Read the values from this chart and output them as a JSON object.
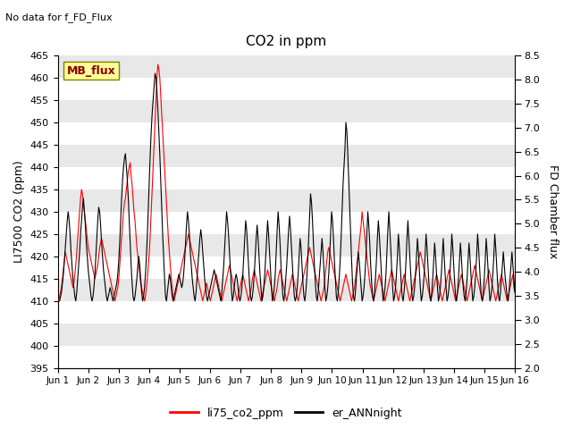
{
  "title": "CO2 in ppm",
  "top_left_text": "No data for f_FD_Flux",
  "ylabel_left": "LI7500 CO2 (ppm)",
  "ylabel_right": "FD Chamber flux",
  "ylim_left": [
    395,
    465
  ],
  "ylim_right": [
    2.0,
    8.5
  ],
  "yticks_left": [
    395,
    400,
    405,
    410,
    415,
    420,
    425,
    430,
    435,
    440,
    445,
    450,
    455,
    460,
    465
  ],
  "yticks_right": [
    2.0,
    2.5,
    3.0,
    3.5,
    4.0,
    4.5,
    5.0,
    5.5,
    6.0,
    6.5,
    7.0,
    7.5,
    8.0,
    8.5
  ],
  "xtick_labels": [
    "Jun 1",
    "Jun 2",
    "Jun 3",
    "Jun 4",
    "Jun 5",
    "Jun 6",
    "Jun 7",
    "Jun 8",
    "Jun 9",
    "Jun 10",
    "Jun 11",
    "Jun 12",
    "Jun 13",
    "Jun 14",
    "Jun 15",
    "Jun 16"
  ],
  "legend_label_left": "li75_co2_ppm",
  "legend_label_right": "er_ANNnight",
  "legend_box_text": "MB_flux",
  "color_red": "#FF0000",
  "color_black": "#000000",
  "color_legend_box": "#FFFF99",
  "background_color": "#FFFFFF",
  "strip_color": "#E8E8E8",
  "red_data": [
    410,
    410,
    411,
    412,
    413,
    415,
    417,
    419,
    421,
    420,
    419,
    418,
    417,
    416,
    415,
    414,
    413,
    414,
    416,
    418,
    421,
    424,
    427,
    430,
    433,
    435,
    434,
    432,
    430,
    428,
    426,
    424,
    422,
    421,
    420,
    419,
    418,
    417,
    416,
    415,
    416,
    417,
    418,
    420,
    422,
    423,
    424,
    423,
    422,
    421,
    420,
    419,
    418,
    417,
    416,
    415,
    414,
    413,
    412,
    411,
    410,
    411,
    412,
    413,
    415,
    418,
    421,
    424,
    427,
    430,
    432,
    433,
    435,
    437,
    439,
    440,
    441,
    438,
    436,
    433,
    430,
    428,
    425,
    422,
    420,
    418,
    416,
    414,
    413,
    412,
    411,
    410,
    411,
    413,
    415,
    418,
    421,
    425,
    430,
    435,
    440,
    445,
    450,
    455,
    460,
    463,
    462,
    460,
    456,
    452,
    448,
    444,
    440,
    436,
    432,
    428,
    424,
    421,
    418,
    415,
    413,
    411,
    410,
    411,
    412,
    413,
    414,
    415,
    416,
    417,
    418,
    419,
    420,
    421,
    422,
    423,
    424,
    425,
    424,
    423,
    422,
    421,
    420,
    419,
    418,
    417,
    416,
    415,
    414,
    413,
    412,
    411,
    410,
    411,
    412,
    413,
    414,
    413,
    412,
    411,
    410,
    411,
    412,
    413,
    414,
    415,
    416,
    415,
    414,
    413,
    412,
    411,
    410,
    411,
    412,
    413,
    414,
    415,
    416,
    417,
    418,
    417,
    416,
    415,
    414,
    413,
    412,
    411,
    410,
    411,
    412,
    413,
    414,
    415,
    416,
    415,
    414,
    413,
    412,
    411,
    410,
    411,
    412,
    413,
    415,
    416,
    417,
    416,
    415,
    414,
    413,
    412,
    411,
    410,
    411,
    412,
    413,
    414,
    415,
    416,
    417,
    416,
    415,
    414,
    413,
    412,
    411,
    410,
    411,
    412,
    413,
    415,
    416,
    417,
    416,
    415,
    414,
    413,
    412,
    411,
    410,
    411,
    412,
    413,
    414,
    415,
    416,
    415,
    414,
    413,
    412,
    411,
    410,
    411,
    412,
    413,
    414,
    415,
    416,
    417,
    418,
    419,
    420,
    421,
    422,
    421,
    420,
    419,
    418,
    417,
    416,
    415,
    414,
    413,
    412,
    411,
    410,
    411,
    412,
    413,
    415,
    417,
    419,
    421,
    422,
    421,
    420,
    419,
    418,
    417,
    416,
    415,
    414,
    413,
    412,
    411,
    410,
    411,
    412,
    413,
    414,
    415,
    416,
    415,
    414,
    413,
    412,
    411,
    410,
    411,
    412,
    413,
    415,
    417,
    419,
    421,
    423,
    425,
    427,
    430,
    428,
    426,
    424,
    422,
    420,
    418,
    416,
    414,
    413,
    412,
    411,
    410,
    411,
    412,
    413,
    414,
    415,
    416,
    415,
    414,
    413,
    412,
    411,
    410,
    411,
    412,
    413,
    414,
    415,
    416,
    417,
    416,
    415,
    414,
    413,
    412,
    411,
    410,
    411,
    412,
    413,
    414,
    415,
    416,
    415,
    414,
    413,
    412,
    411,
    410,
    411,
    412,
    413,
    414,
    415,
    416,
    417,
    418,
    419,
    420,
    421,
    420,
    419,
    418,
    417,
    416,
    415,
    414,
    413,
    412,
    411,
    410,
    411,
    412,
    413,
    414,
    415,
    416,
    415,
    414,
    413,
    412,
    411,
    410,
    411,
    412,
    413,
    414,
    415,
    416,
    417,
    416,
    415,
    414,
    413,
    412,
    411,
    410,
    411,
    412,
    413,
    414,
    415,
    416,
    415,
    414,
    413,
    412,
    411,
    410,
    411,
    412,
    413,
    414,
    415,
    416,
    417,
    418,
    417,
    416,
    415,
    414,
    413,
    412,
    411,
    410,
    411,
    412,
    413,
    414,
    415,
    416,
    417,
    416,
    415,
    414,
    413,
    412,
    411,
    410,
    411,
    412,
    413,
    414,
    415,
    416,
    415,
    414,
    413,
    412,
    411,
    410,
    411,
    412,
    413,
    414,
    415,
    416,
    413,
    412
  ],
  "black_data": [
    410,
    410,
    410,
    411,
    412,
    414,
    416,
    419,
    422,
    425,
    428,
    430,
    428,
    425,
    421,
    418,
    415,
    413,
    411,
    410,
    412,
    415,
    418,
    421,
    425,
    428,
    431,
    433,
    430,
    427,
    423,
    420,
    417,
    415,
    413,
    411,
    410,
    411,
    413,
    416,
    420,
    424,
    428,
    431,
    430,
    427,
    423,
    420,
    417,
    415,
    413,
    411,
    410,
    411,
    412,
    413,
    412,
    411,
    410,
    411,
    412,
    413,
    414,
    416,
    419,
    423,
    428,
    433,
    437,
    440,
    442,
    443,
    440,
    437,
    433,
    428,
    423,
    418,
    414,
    411,
    410,
    411,
    413,
    415,
    418,
    420,
    418,
    415,
    412,
    410,
    411,
    413,
    416,
    420,
    425,
    431,
    437,
    443,
    448,
    452,
    455,
    458,
    461,
    460,
    457,
    453,
    448,
    443,
    437,
    431,
    425,
    420,
    415,
    411,
    410,
    412,
    414,
    416,
    415,
    413,
    411,
    410,
    411,
    412,
    413,
    414,
    415,
    416,
    415,
    414,
    413,
    414,
    416,
    419,
    423,
    427,
    430,
    428,
    425,
    421,
    418,
    415,
    413,
    411,
    410,
    412,
    415,
    418,
    421,
    424,
    426,
    424,
    421,
    418,
    415,
    413,
    411,
    410,
    411,
    412,
    413,
    414,
    415,
    416,
    417,
    416,
    415,
    414,
    413,
    412,
    411,
    410,
    412,
    415,
    418,
    422,
    426,
    430,
    428,
    425,
    421,
    417,
    413,
    410,
    411,
    413,
    415,
    416,
    415,
    413,
    411,
    410,
    411,
    413,
    416,
    420,
    424,
    428,
    426,
    422,
    418,
    414,
    411,
    410,
    411,
    413,
    416,
    420,
    424,
    427,
    424,
    420,
    416,
    413,
    410,
    411,
    413,
    416,
    420,
    424,
    428,
    425,
    421,
    417,
    413,
    410,
    411,
    413,
    416,
    421,
    426,
    430,
    427,
    423,
    418,
    414,
    411,
    410,
    412,
    415,
    418,
    422,
    426,
    429,
    426,
    422,
    418,
    414,
    411,
    410,
    411,
    413,
    416,
    420,
    424,
    422,
    418,
    414,
    411,
    410,
    412,
    415,
    419,
    424,
    429,
    434,
    432,
    428,
    423,
    418,
    414,
    411,
    410,
    412,
    415,
    418,
    421,
    424,
    421,
    417,
    413,
    410,
    411,
    413,
    416,
    420,
    425,
    430,
    428,
    424,
    419,
    415,
    411,
    410,
    412,
    415,
    419,
    424,
    430,
    436,
    440,
    444,
    450,
    448,
    443,
    437,
    431,
    425,
    419,
    414,
    411,
    410,
    412,
    415,
    418,
    421,
    419,
    416,
    413,
    410,
    411,
    413,
    416,
    420,
    425,
    430,
    427,
    423,
    418,
    414,
    411,
    410,
    412,
    415,
    419,
    424,
    428,
    425,
    421,
    417,
    413,
    410,
    411,
    413,
    416,
    421,
    426,
    430,
    426,
    422,
    417,
    413,
    410,
    411,
    413,
    416,
    420,
    425,
    422,
    418,
    414,
    411,
    410,
    412,
    415,
    419,
    424,
    428,
    424,
    420,
    416,
    412,
    410,
    411,
    413,
    416,
    420,
    424,
    421,
    417,
    413,
    410,
    411,
    413,
    416,
    420,
    425,
    422,
    418,
    414,
    411,
    410,
    412,
    415,
    419,
    423,
    420,
    416,
    413,
    410,
    411,
    413,
    416,
    420,
    424,
    420,
    416,
    413,
    410,
    411,
    413,
    416,
    420,
    425,
    422,
    418,
    414,
    411,
    410,
    412,
    415,
    419,
    423,
    420,
    416,
    413,
    411,
    410,
    412,
    415,
    419,
    423,
    420,
    416,
    413,
    410,
    411,
    413,
    416,
    420,
    425,
    422,
    418,
    414,
    411,
    410,
    412,
    415,
    419,
    424,
    421,
    417,
    413,
    410,
    411,
    413,
    416,
    420,
    425,
    422,
    418,
    414,
    411,
    410,
    412,
    415,
    418,
    421,
    418,
    415,
    413,
    411,
    410,
    412,
    415,
    418,
    421,
    418,
    415,
    412
  ]
}
